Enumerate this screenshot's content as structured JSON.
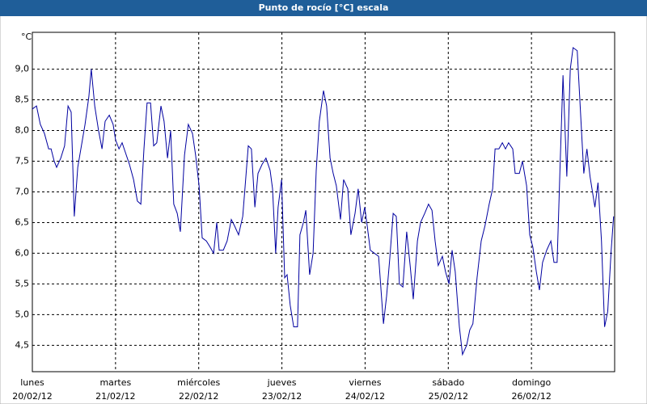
{
  "window_title": "Punto de rocío [°C] escala",
  "chart_data": {
    "type": "line",
    "ylabel": "°C",
    "xlim": [
      0,
      168
    ],
    "ylim": [
      4.07,
      9.6
    ],
    "xticks": [
      {
        "value": 0,
        "label": "lunes",
        "date": "20/02/12"
      },
      {
        "value": 24,
        "label": "martes",
        "date": "21/02/12"
      },
      {
        "value": 48,
        "label": "miércoles",
        "date": "22/02/12"
      },
      {
        "value": 72,
        "label": "jueves",
        "date": "23/02/12"
      },
      {
        "value": 96,
        "label": "viernes",
        "date": "24/02/12"
      },
      {
        "value": 120,
        "label": "sábado",
        "date": "25/02/12"
      },
      {
        "value": 144,
        "label": "domingo",
        "date": "26/02/12"
      }
    ],
    "yticks": [
      {
        "value": 4.5,
        "label": "4,5"
      },
      {
        "value": 5,
        "label": "5,0"
      },
      {
        "value": 5.5,
        "label": "5,5"
      },
      {
        "value": 6,
        "label": "6,0"
      },
      {
        "value": 6.5,
        "label": "6,5"
      },
      {
        "value": 7,
        "label": "7,0"
      },
      {
        "value": 7.5,
        "label": "7,5"
      },
      {
        "value": 8,
        "label": "8,0"
      },
      {
        "value": 8.5,
        "label": "8,5"
      },
      {
        "value": 9,
        "label": "9,0"
      }
    ],
    "grid": true,
    "series": [
      {
        "color": "#0000a0",
        "x": [
          0,
          1.2,
          2.3,
          3.5,
          4.7,
          5.4,
          6.3,
          7.0,
          8.2,
          9.3,
          10.3,
          11.2,
          12.1,
          13.1,
          14.0,
          15.2,
          16.3,
          17.0,
          18.0,
          19.1,
          20.1,
          21.0,
          22.2,
          23.3,
          24.0,
          25.0,
          25.9,
          26.8,
          28.0,
          29.2,
          30.3,
          31.3,
          32.2,
          33.1,
          34.1,
          35.0,
          35.9,
          37.1,
          38.0,
          39.0,
          39.9,
          40.8,
          41.8,
          42.7,
          43.9,
          45.0,
          46.2,
          47.1,
          48.1,
          49.0,
          50.2,
          51.3,
          52.3,
          53.2,
          53.9,
          55.1,
          56.2,
          57.4,
          58.3,
          59.5,
          60.7,
          61.4,
          62.3,
          63.2,
          64.2,
          65.1,
          66.3,
          67.4,
          68.6,
          69.3,
          70.2,
          70.9,
          71.9,
          72.8,
          73.5,
          74.4,
          75.4,
          76.5,
          77.2,
          78.2,
          78.9,
          80.0,
          81.0,
          81.9,
          82.8,
          84.0,
          84.9,
          85.9,
          86.8,
          87.7,
          88.9,
          89.8,
          91.0,
          91.9,
          93.1,
          94.0,
          95.0,
          95.9,
          96.6,
          97.5,
          98.7,
          99.9,
          101.3,
          102.2,
          103.1,
          104.1,
          105.0,
          105.9,
          106.9,
          108.0,
          109.0,
          109.9,
          111.1,
          112.0,
          113.2,
          114.3,
          115.3,
          116.2,
          117.1,
          118.3,
          119.2,
          120.2,
          121.1,
          122.0,
          123.2,
          124.1,
          125.3,
          126.2,
          127.1,
          128.3,
          129.5,
          130.6,
          131.8,
          132.8,
          133.5,
          134.6,
          135.6,
          136.5,
          137.4,
          138.6,
          139.3,
          140.5,
          141.4,
          142.6,
          143.5,
          144.4,
          145.4,
          146.3,
          147.2,
          148.4,
          149.6,
          150.5,
          151.4,
          152.3,
          153.1,
          154.2,
          155.2,
          156.0,
          157.2,
          158.1,
          159.1,
          160.0,
          160.9,
          162.3,
          163.2,
          164.2,
          165.1,
          166.0,
          167.0,
          167.7
        ],
        "values": [
          8.35,
          8.4,
          8.1,
          7.95,
          7.7,
          7.7,
          7.5,
          7.4,
          7.55,
          7.75,
          8.4,
          8.3,
          6.6,
          7.4,
          7.7,
          8.1,
          8.55,
          9.0,
          8.4,
          8.0,
          7.7,
          8.15,
          8.25,
          8.1,
          7.85,
          7.7,
          7.8,
          7.65,
          7.45,
          7.2,
          6.85,
          6.8,
          7.7,
          8.45,
          8.45,
          7.75,
          7.8,
          8.4,
          8.15,
          7.55,
          8.0,
          6.8,
          6.65,
          6.35,
          7.6,
          8.1,
          7.95,
          7.6,
          7.1,
          6.25,
          6.2,
          6.1,
          6.0,
          6.5,
          6.05,
          6.05,
          6.2,
          6.55,
          6.45,
          6.3,
          6.6,
          7.1,
          7.75,
          7.7,
          6.75,
          7.3,
          7.45,
          7.55,
          7.35,
          7.05,
          6.0,
          6.75,
          7.2,
          5.6,
          5.65,
          5.15,
          4.8,
          4.8,
          6.3,
          6.5,
          6.7,
          5.65,
          6.0,
          7.35,
          8.15,
          8.65,
          8.4,
          7.55,
          7.3,
          7.1,
          6.55,
          7.2,
          7.05,
          6.3,
          6.65,
          7.05,
          6.5,
          6.75,
          6.45,
          6.05,
          6.0,
          5.95,
          4.85,
          5.3,
          5.9,
          6.65,
          6.6,
          5.5,
          5.45,
          6.35,
          5.8,
          5.25,
          6.2,
          6.5,
          6.65,
          6.8,
          6.7,
          6.2,
          5.8,
          5.95,
          5.7,
          5.5,
          6.05,
          5.7,
          4.8,
          4.35,
          4.5,
          4.75,
          4.85,
          5.6,
          6.2,
          6.45,
          6.8,
          7.05,
          7.7,
          7.7,
          7.8,
          7.7,
          7.8,
          7.7,
          7.3,
          7.3,
          7.5,
          7.1,
          6.3,
          6.1,
          5.7,
          5.4,
          5.85,
          6.05,
          6.2,
          5.85,
          5.85,
          7.5,
          8.9,
          7.25,
          9.0,
          9.35,
          9.3,
          8.35,
          7.3,
          7.7,
          7.25,
          6.75,
          7.15,
          6.2,
          4.8,
          5.05,
          6.05,
          6.6
        ]
      }
    ]
  }
}
